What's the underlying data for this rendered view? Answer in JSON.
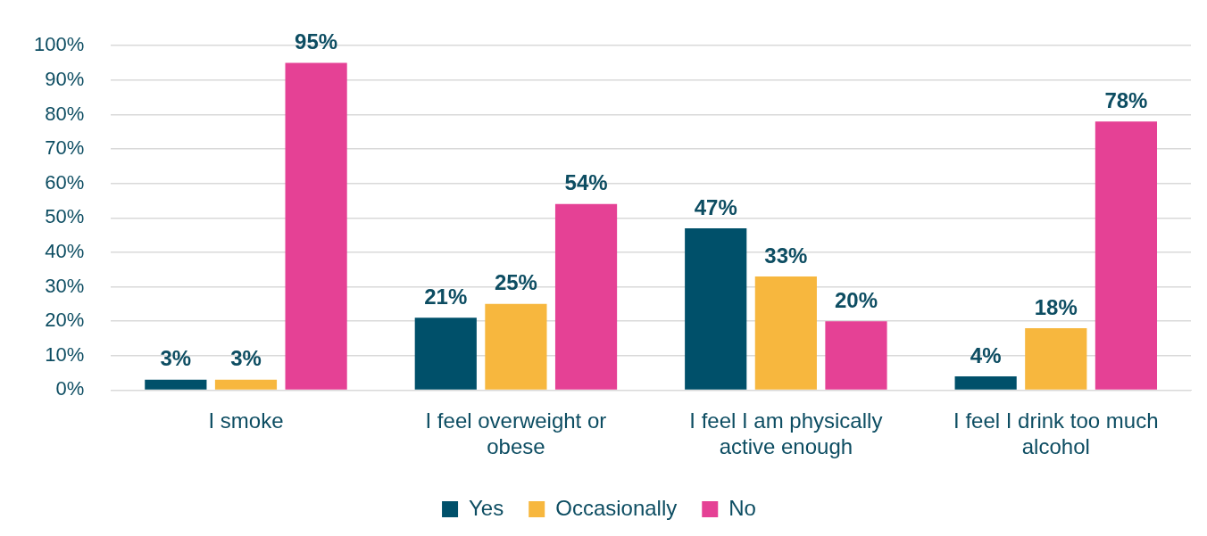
{
  "chart_data": {
    "type": "bar",
    "categories": [
      "I smoke",
      "I feel overweight or obese",
      "I feel I am physically active enough",
      "I feel I drink too much alcohol"
    ],
    "series": [
      {
        "name": "Yes",
        "color": "#00506a",
        "values": [
          3,
          21,
          47,
          4
        ],
        "value_labels": [
          "3%",
          "21%",
          "47%",
          "4%"
        ]
      },
      {
        "name": "Occasionally",
        "color": "#f7b73e",
        "values": [
          3,
          25,
          33,
          18
        ],
        "value_labels": [
          "3%",
          "25%",
          "33%",
          "18%"
        ]
      },
      {
        "name": "No",
        "color": "#e54195",
        "values": [
          95,
          54,
          20,
          78
        ],
        "value_labels": [
          "95%",
          "54%",
          "20%",
          "78%"
        ]
      }
    ],
    "ylim": [
      0,
      100
    ],
    "yticks": [
      {
        "value": 0,
        "label": "0%"
      },
      {
        "value": 10,
        "label": "10%"
      },
      {
        "value": 20,
        "label": "20%"
      },
      {
        "value": 30,
        "label": "30%"
      },
      {
        "value": 40,
        "label": "40%"
      },
      {
        "value": 50,
        "label": "50%"
      },
      {
        "value": 60,
        "label": "60%"
      },
      {
        "value": 70,
        "label": "70%"
      },
      {
        "value": 80,
        "label": "80%"
      },
      {
        "value": 90,
        "label": "90%"
      },
      {
        "value": 100,
        "label": "100%"
      }
    ],
    "grid": "y",
    "legend": "bottom"
  }
}
